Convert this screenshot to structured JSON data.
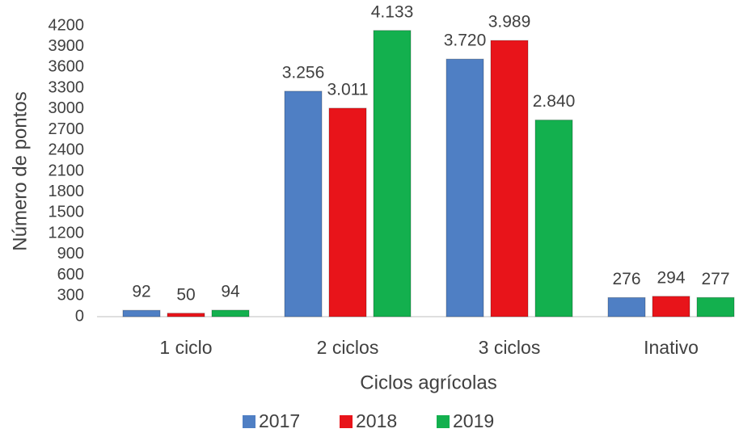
{
  "chart_data": {
    "type": "bar",
    "categories": [
      "1 ciclo",
      "2 ciclos",
      "3 ciclos",
      "Inativo"
    ],
    "series": [
      {
        "name": "2017",
        "color": "#4f7fc4",
        "values": [
          92,
          3256,
          3720,
          276
        ],
        "value_labels": [
          "92",
          "3.256",
          "3.720",
          "276"
        ]
      },
      {
        "name": "2018",
        "color": "#e8141a",
        "values": [
          50,
          3011,
          3989,
          294
        ],
        "value_labels": [
          "50",
          "3.011",
          "3.989",
          "294"
        ]
      },
      {
        "name": "2019",
        "color": "#13b04e",
        "values": [
          94,
          4133,
          2840,
          277
        ],
        "value_labels": [
          "94",
          "4.133",
          "2.840",
          "277"
        ]
      }
    ],
    "xlabel": "Ciclos agrícolas",
    "ylabel": "Número de pontos",
    "ylim": [
      0,
      4200
    ],
    "yticks": [
      0,
      300,
      600,
      900,
      1200,
      1500,
      1800,
      2100,
      2400,
      2700,
      3000,
      3300,
      3600,
      3900,
      4200
    ],
    "grid": false,
    "legend": "bottom"
  }
}
